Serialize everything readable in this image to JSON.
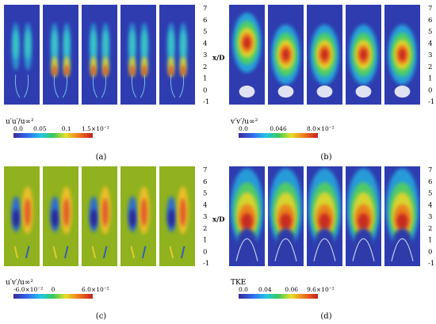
{
  "figure": {
    "axis_label": "x/D",
    "y_ticks": [
      "7",
      "6",
      "5",
      "4",
      "3",
      "2",
      "1",
      "0",
      "-1"
    ],
    "panels": [
      {
        "id": "a",
        "caption": "(a)",
        "quantity": "u′u′/u∞²",
        "colorbar_labels": [
          "0.0",
          "0.05",
          "0.1",
          "1.5×10⁻¹"
        ],
        "pattern": "twin-streak",
        "background": "#2f3cb0"
      },
      {
        "id": "b",
        "caption": "(b)",
        "quantity": "v′v′/u∞²",
        "colorbar_labels": [
          "0.0",
          "0.046",
          "8.0×10⁻²"
        ],
        "pattern": "central-blob",
        "background": "#2f3cb0"
      },
      {
        "id": "c",
        "caption": "(c)",
        "quantity": "u′v′/u∞²",
        "colorbar_labels": [
          "-6.0×10⁻²",
          "0",
          "6.0×10⁻²"
        ],
        "pattern": "antisymmetric",
        "background": "#8fb21e"
      },
      {
        "id": "d",
        "caption": "(d)",
        "quantity": "TKE",
        "colorbar_labels": [
          "0.0",
          "0.04",
          "0.06",
          "9.6×10⁻²"
        ],
        "pattern": "arch",
        "background": "#2f3cb0"
      }
    ]
  }
}
